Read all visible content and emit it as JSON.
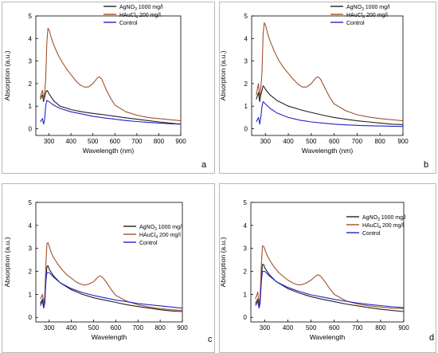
{
  "series_styles": [
    {
      "color": "#222222"
    },
    {
      "color": "#a0522d"
    },
    {
      "color": "#2222cc"
    }
  ],
  "chart_data": [
    {
      "type": "line",
      "panel_label": "a",
      "ylabel": "Absorption (a.u.)",
      "xlabel": "Wavelength (nm)",
      "xlim": [
        240,
        900
      ],
      "ylim": [
        -0.3,
        5
      ],
      "x_ticks": [
        300,
        400,
        500,
        600,
        700,
        800,
        900
      ],
      "y_ticks": [
        0,
        1,
        2,
        3,
        4,
        5
      ],
      "legend": [
        "AgNO",
        "3",
        " 1000 mg/l",
        "HAuCl",
        "4",
        " 200 mg/l",
        "Control"
      ],
      "legend_position": "top",
      "series": [
        {
          "name": "AgNO3 1000 mg/l",
          "x": [
            260,
            270,
            275,
            280,
            285,
            290,
            295,
            300,
            320,
            350,
            400,
            450,
            500,
            550,
            600,
            650,
            700,
            750,
            800,
            850,
            900
          ],
          "y": [
            1.3,
            1.5,
            1.2,
            1.4,
            1.6,
            1.7,
            1.65,
            1.55,
            1.25,
            1.0,
            0.85,
            0.75,
            0.68,
            0.62,
            0.55,
            0.48,
            0.42,
            0.36,
            0.3,
            0.25,
            0.2
          ]
        },
        {
          "name": "HAuCl4 200 mg/l",
          "x": [
            260,
            270,
            275,
            280,
            285,
            290,
            295,
            300,
            310,
            320,
            340,
            360,
            380,
            400,
            420,
            440,
            460,
            480,
            500,
            520,
            530,
            540,
            560,
            580,
            600,
            650,
            700,
            750,
            800,
            850,
            900
          ],
          "y": [
            1.4,
            1.7,
            1.3,
            1.6,
            2.2,
            3.8,
            4.45,
            4.4,
            4.05,
            3.75,
            3.3,
            2.95,
            2.65,
            2.4,
            2.15,
            1.95,
            1.85,
            1.85,
            2.0,
            2.25,
            2.3,
            2.2,
            1.75,
            1.35,
            1.05,
            0.75,
            0.6,
            0.5,
            0.45,
            0.4,
            0.35
          ]
        },
        {
          "name": "Control",
          "x": [
            260,
            270,
            275,
            280,
            285,
            290,
            300,
            320,
            350,
            400,
            450,
            500,
            550,
            600,
            650,
            700,
            750,
            800,
            850,
            900
          ],
          "y": [
            0.3,
            0.45,
            0.2,
            0.4,
            1.0,
            1.25,
            1.2,
            1.05,
            0.9,
            0.75,
            0.65,
            0.55,
            0.48,
            0.42,
            0.36,
            0.32,
            0.28,
            0.25,
            0.22,
            0.2
          ]
        }
      ]
    },
    {
      "type": "line",
      "panel_label": "b",
      "ylabel": "Absorption (a.u.)",
      "xlabel": "Wavelength (nm)",
      "xlim": [
        240,
        900
      ],
      "ylim": [
        -0.3,
        5
      ],
      "x_ticks": [
        300,
        400,
        500,
        600,
        700,
        800,
        900
      ],
      "y_ticks": [
        0,
        1,
        2,
        3,
        4,
        5
      ],
      "legend": [
        "AgNO",
        "3",
        " 1000 mg/l",
        "HAuCl",
        "4",
        " 200 mg/l",
        "Control"
      ],
      "legend_position": "top",
      "series": [
        {
          "name": "AgNO3 1000 mg/l",
          "x": [
            260,
            270,
            275,
            280,
            285,
            290,
            295,
            300,
            320,
            350,
            400,
            450,
            500,
            550,
            600,
            650,
            700,
            750,
            800,
            850,
            900
          ],
          "y": [
            1.3,
            1.6,
            1.2,
            1.5,
            1.7,
            1.9,
            1.85,
            1.75,
            1.5,
            1.25,
            1.0,
            0.85,
            0.72,
            0.6,
            0.5,
            0.42,
            0.35,
            0.3,
            0.25,
            0.2,
            0.18
          ]
        },
        {
          "name": "HAuCl4 200 mg/l",
          "x": [
            260,
            270,
            275,
            280,
            285,
            290,
            295,
            300,
            310,
            320,
            340,
            360,
            380,
            400,
            420,
            440,
            460,
            480,
            500,
            520,
            530,
            540,
            560,
            580,
            600,
            650,
            700,
            750,
            800,
            850,
            900
          ],
          "y": [
            1.5,
            2.0,
            1.4,
            1.8,
            2.5,
            4.2,
            4.7,
            4.6,
            4.2,
            3.9,
            3.4,
            3.0,
            2.7,
            2.45,
            2.2,
            2.0,
            1.85,
            1.85,
            2.0,
            2.25,
            2.3,
            2.2,
            1.8,
            1.4,
            1.1,
            0.8,
            0.62,
            0.52,
            0.45,
            0.4,
            0.35
          ]
        },
        {
          "name": "Control",
          "x": [
            260,
            270,
            275,
            280,
            285,
            290,
            300,
            320,
            350,
            400,
            450,
            500,
            550,
            600,
            650,
            700,
            750,
            800,
            850,
            900
          ],
          "y": [
            0.3,
            0.5,
            0.2,
            0.5,
            1.0,
            1.2,
            1.1,
            0.9,
            0.7,
            0.5,
            0.38,
            0.3,
            0.25,
            0.2,
            0.17,
            0.15,
            0.13,
            0.12,
            0.11,
            0.1
          ]
        }
      ]
    },
    {
      "type": "line",
      "panel_label": "c",
      "ylabel": "Absorption (a.u.)",
      "xlabel": "Wavelength",
      "xlim": [
        240,
        900
      ],
      "ylim": [
        -0.2,
        5
      ],
      "x_ticks": [
        300,
        400,
        500,
        600,
        700,
        800,
        900
      ],
      "y_ticks": [
        0,
        1,
        2,
        3,
        4,
        5
      ],
      "legend": [
        "AgNO",
        "3",
        " 1000 mg/l",
        "HAuCl",
        "4",
        " 200 mg/l",
        "Control"
      ],
      "legend_position": "right",
      "series": [
        {
          "name": "AgNO3 1000 mg/l",
          "x": [
            260,
            270,
            275,
            280,
            285,
            290,
            295,
            300,
            320,
            350,
            400,
            450,
            500,
            550,
            600,
            650,
            700,
            750,
            800,
            850,
            900
          ],
          "y": [
            0.6,
            0.8,
            0.5,
            0.7,
            1.6,
            2.2,
            2.25,
            2.1,
            1.8,
            1.5,
            1.2,
            1.0,
            0.85,
            0.75,
            0.65,
            0.55,
            0.47,
            0.4,
            0.33,
            0.28,
            0.25
          ]
        },
        {
          "name": "HAuCl4 200 mg/l",
          "x": [
            260,
            270,
            275,
            280,
            285,
            290,
            295,
            300,
            310,
            320,
            340,
            360,
            380,
            400,
            420,
            440,
            460,
            480,
            500,
            520,
            530,
            540,
            560,
            580,
            600,
            650,
            700,
            750,
            800,
            850,
            900
          ],
          "y": [
            0.8,
            1.0,
            0.6,
            0.9,
            2.2,
            3.2,
            3.25,
            3.1,
            2.8,
            2.6,
            2.3,
            2.05,
            1.85,
            1.7,
            1.55,
            1.45,
            1.4,
            1.45,
            1.55,
            1.75,
            1.8,
            1.75,
            1.5,
            1.2,
            0.95,
            0.7,
            0.55,
            0.45,
            0.38,
            0.33,
            0.3
          ]
        },
        {
          "name": "Control",
          "x": [
            260,
            270,
            275,
            280,
            285,
            290,
            300,
            320,
            350,
            400,
            450,
            500,
            550,
            600,
            650,
            700,
            750,
            800,
            850,
            900
          ],
          "y": [
            0.5,
            0.7,
            0.4,
            0.6,
            1.5,
            1.95,
            1.95,
            1.75,
            1.5,
            1.25,
            1.08,
            0.95,
            0.85,
            0.75,
            0.68,
            0.6,
            0.55,
            0.5,
            0.45,
            0.4
          ]
        }
      ]
    },
    {
      "type": "line",
      "panel_label": "d",
      "ylabel": "Absorption (a.u.)",
      "xlabel": "Wavelength",
      "xlim": [
        240,
        900
      ],
      "ylim": [
        -0.2,
        5
      ],
      "x_ticks": [
        300,
        400,
        500,
        600,
        700,
        800,
        900
      ],
      "y_ticks": [
        0,
        1,
        2,
        3,
        4,
        5
      ],
      "legend": [
        "AgNO",
        "3",
        "  1000 mg/l",
        "HAuCl",
        "4",
        "  200 mg/l",
        "Control"
      ],
      "legend_position": "right",
      "series": [
        {
          "name": "AgNO3 1000 mg/l",
          "x": [
            260,
            270,
            275,
            280,
            285,
            290,
            295,
            300,
            320,
            350,
            400,
            450,
            500,
            550,
            600,
            650,
            700,
            750,
            800,
            850,
            900
          ],
          "y": [
            0.6,
            0.8,
            0.5,
            0.7,
            1.7,
            2.3,
            2.3,
            2.15,
            1.85,
            1.55,
            1.25,
            1.05,
            0.9,
            0.78,
            0.68,
            0.58,
            0.5,
            0.42,
            0.35,
            0.3,
            0.25
          ]
        },
        {
          "name": "HAuCl4 200 mg/l",
          "x": [
            260,
            270,
            275,
            280,
            285,
            290,
            295,
            300,
            310,
            320,
            340,
            360,
            380,
            400,
            420,
            440,
            460,
            480,
            500,
            520,
            530,
            540,
            560,
            580,
            600,
            650,
            700,
            750,
            800,
            850,
            900
          ],
          "y": [
            0.8,
            1.1,
            0.6,
            0.9,
            2.2,
            3.1,
            3.1,
            2.95,
            2.7,
            2.5,
            2.2,
            1.95,
            1.78,
            1.62,
            1.5,
            1.42,
            1.42,
            1.5,
            1.62,
            1.8,
            1.85,
            1.8,
            1.55,
            1.25,
            1.0,
            0.72,
            0.58,
            0.5,
            0.45,
            0.4,
            0.38
          ]
        },
        {
          "name": "Control",
          "x": [
            260,
            270,
            275,
            280,
            285,
            290,
            300,
            320,
            350,
            400,
            450,
            500,
            550,
            600,
            650,
            700,
            750,
            800,
            850,
            900
          ],
          "y": [
            0.5,
            0.7,
            0.4,
            0.6,
            1.5,
            2.0,
            2.0,
            1.8,
            1.55,
            1.3,
            1.12,
            0.98,
            0.88,
            0.78,
            0.7,
            0.62,
            0.56,
            0.51,
            0.46,
            0.42
          ]
        }
      ]
    }
  ]
}
